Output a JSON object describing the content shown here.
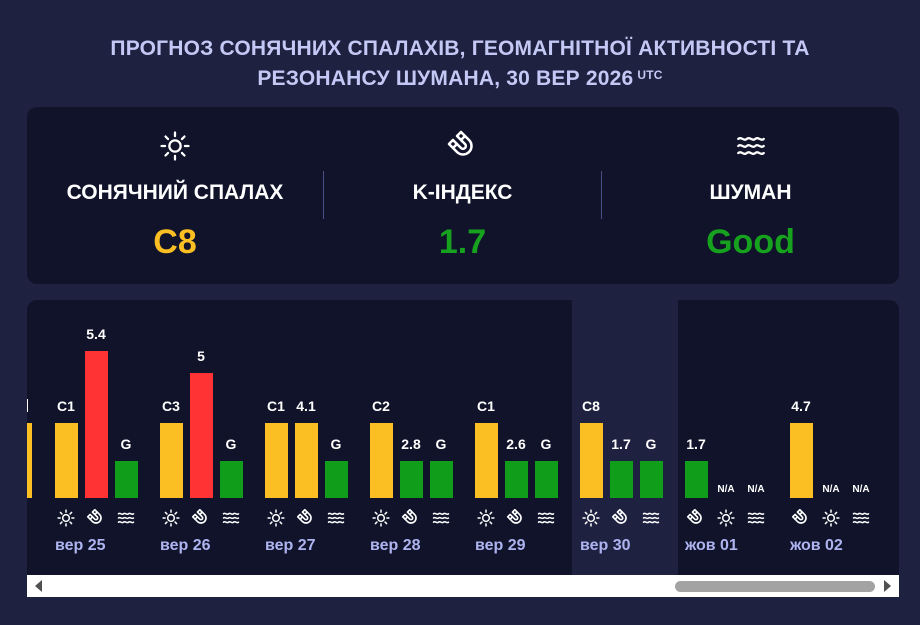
{
  "header": {
    "title_line1": "ПРОГНОЗ СОНЯЧНИХ СПАЛАХІВ, ГЕОМАГНІТНОЇ АКТИВНОСТІ ТА",
    "title_line2": "РЕЗОНАНСУ ШУМАНА, 30 ВЕР 2026",
    "timezone": "UTC"
  },
  "summary": {
    "solar": {
      "label": "СОНЯЧНИЙ СПАЛАХ",
      "value": "C8",
      "icon": "sun-icon",
      "color": "#fbbf24"
    },
    "kindex": {
      "label": "K-ІНДЕКС",
      "value": "1.7",
      "icon": "magnet-icon",
      "color": "#16a11e"
    },
    "schumann": {
      "label": "ШУМАН",
      "value": "Good",
      "icon": "waves-icon",
      "color": "#16a11e"
    }
  },
  "colors": {
    "flare": "#fbbf24",
    "kindex_high": "#ff3333",
    "kindex_normal": "#0f9d1a",
    "schumann_good": "#0f9d1a",
    "current_day_band": "#1e2140",
    "date_label": "#aeb4f0"
  },
  "chart_data": {
    "type": "bar",
    "series": [
      {
        "name": "Сонячний спалах",
        "icon": "sun-icon"
      },
      {
        "name": "K-індекс",
        "icon": "magnet-icon"
      },
      {
        "name": "Шуман",
        "icon": "waves-icon"
      }
    ],
    "days": [
      {
        "date": "вер 25",
        "flare": "C1",
        "kindex": 5.4,
        "kindex_label": "5.4",
        "schumann": "G",
        "icons": [
          "sun-icon",
          "magnet-icon",
          "waves-icon"
        ]
      },
      {
        "date": "вер 26",
        "flare": "C3",
        "kindex": 5,
        "kindex_label": "5",
        "schumann": "G",
        "icons": [
          "sun-icon",
          "magnet-icon",
          "waves-icon"
        ]
      },
      {
        "date": "вер 27",
        "flare": "C1",
        "kindex": 4.1,
        "kindex_label": "4.1",
        "schumann": "G",
        "icons": [
          "sun-icon",
          "magnet-icon",
          "waves-icon"
        ]
      },
      {
        "date": "вер 28",
        "flare": "C2",
        "kindex": 2.8,
        "kindex_label": "2.8",
        "schumann": "G",
        "icons": [
          "sun-icon",
          "magnet-icon",
          "waves-icon"
        ]
      },
      {
        "date": "вер 29",
        "flare": "C1",
        "kindex": 2.6,
        "kindex_label": "2.6",
        "schumann": "G",
        "icons": [
          "sun-icon",
          "magnet-icon",
          "waves-icon"
        ]
      },
      {
        "date": "вер 30",
        "flare": "C8",
        "kindex": 1.7,
        "kindex_label": "1.7",
        "schumann": "G",
        "icons": [
          "sun-icon",
          "magnet-icon",
          "waves-icon"
        ],
        "current": true
      },
      {
        "date": "жов 01",
        "flare": null,
        "kindex": 1.7,
        "kindex_label": "1.7",
        "flare_label": "N/A",
        "schumann": null,
        "schumann_label": "N/A",
        "order": [
          "kindex",
          "flare",
          "schumann"
        ],
        "icons": [
          "magnet-icon",
          "sun-icon",
          "waves-icon"
        ]
      },
      {
        "date": "жов 02",
        "flare": null,
        "kindex": 4.7,
        "kindex_label": "4.7",
        "flare_label": "N/A",
        "schumann": null,
        "schumann_label": "N/A",
        "order": [
          "kindex",
          "flare",
          "schumann"
        ],
        "icons": [
          "magnet-icon",
          "sun-icon",
          "waves-icon"
        ]
      }
    ],
    "kindex_high_threshold": 5,
    "grid": false
  }
}
